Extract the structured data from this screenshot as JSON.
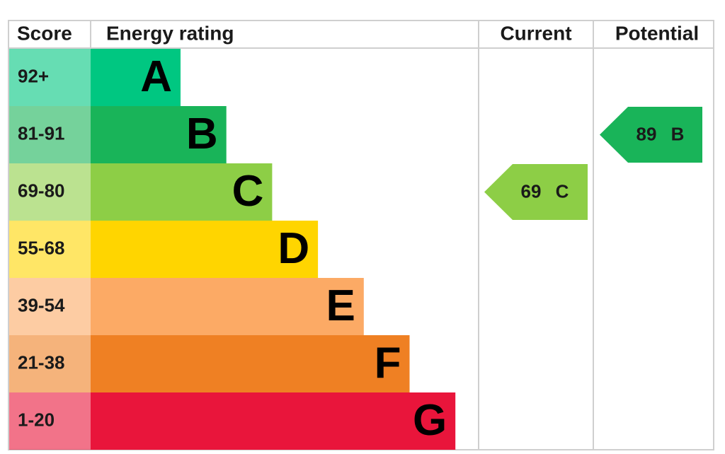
{
  "header": {
    "score": "Score",
    "energy_rating": "Energy rating",
    "current": "Current",
    "potential": "Potential"
  },
  "rows": [
    {
      "score": "92+",
      "letter": "A",
      "color": "#00c781"
    },
    {
      "score": "81-91",
      "letter": "B",
      "color": "#19b459"
    },
    {
      "score": "69-80",
      "letter": "C",
      "color": "#8dce46"
    },
    {
      "score": "55-68",
      "letter": "D",
      "color": "#ffd500"
    },
    {
      "score": "39-54",
      "letter": "E",
      "color": "#fcaa65"
    },
    {
      "score": "21-38",
      "letter": "F",
      "color": "#ef8023"
    },
    {
      "score": "1-20",
      "letter": "G",
      "color": "#e9153b"
    }
  ],
  "current": {
    "score": 69,
    "rating": "C"
  },
  "potential": {
    "score": 89,
    "rating": "B"
  }
}
